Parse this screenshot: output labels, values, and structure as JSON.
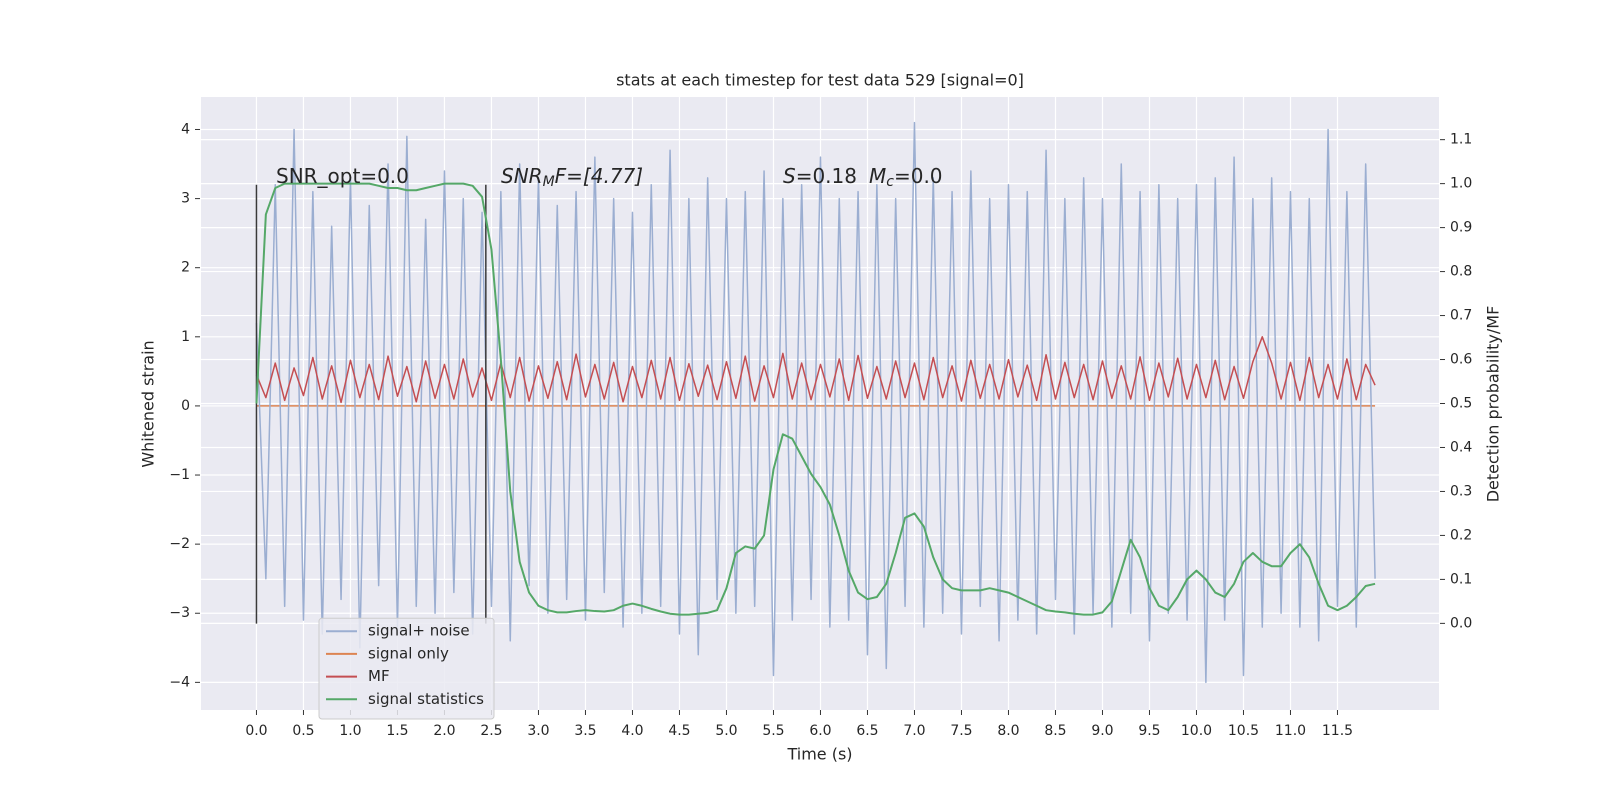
{
  "chart_data": {
    "type": "line",
    "title": "stats at each timestep for test data 529 [signal=0]",
    "xlabel": "Time (s)",
    "ylabel": "Whitened strain",
    "y2label": "Detection probability/MF",
    "annotations": [
      [
        "SNR_opt=0.0"
      ],
      [
        "SNR",
        "M",
        "F=[4.77]"
      ],
      [
        "S",
        "=0.18",
        "M",
        "c",
        "=0.0"
      ]
    ],
    "xlim": [
      -0.59,
      12.58
    ],
    "ylim": [
      -4.4,
      4.47
    ],
    "y2lim": [
      -0.197,
      1.197
    ],
    "xticks": [
      {
        "value": 0,
        "label": "0.0"
      },
      0.5,
      {
        "value": 1,
        "label": "1.0"
      },
      1.5,
      {
        "value": 2,
        "label": "2.0"
      },
      2.5,
      {
        "value": 3,
        "label": "3.0"
      },
      3.5,
      {
        "value": 4,
        "label": "4.0"
      },
      4.5,
      {
        "value": 5,
        "label": "5.0"
      },
      5.5,
      {
        "value": 6,
        "label": "6.0"
      },
      6.5,
      {
        "value": 7,
        "label": "7.0"
      },
      7.5,
      {
        "value": 8,
        "label": "8.0"
      },
      8.5,
      {
        "value": 9,
        "label": "9.0"
      },
      9.5,
      {
        "value": 10,
        "label": "10.0"
      },
      10.5,
      {
        "value": 11,
        "label": "11.0"
      },
      11.5
    ],
    "yticks": [
      {
        "value": -4,
        "label": "−4"
      },
      {
        "value": -3,
        "label": "−3"
      },
      {
        "value": -2,
        "label": "−2"
      },
      {
        "value": -1,
        "label": "−1"
      },
      0,
      1,
      2,
      3,
      4
    ],
    "y2ticks": [
      {
        "value": 0,
        "label": "0.0"
      },
      0.1,
      0.2,
      0.3,
      0.4,
      0.5,
      0.6,
      0.7,
      0.8,
      0.9,
      {
        "value": 1,
        "label": "1.0"
      },
      1.1
    ],
    "grid": true,
    "legend": "lower left",
    "vlines": {
      "x": [
        0,
        2.44
      ],
      "ymin": -3.15,
      "ymax": 3.2,
      "color": "#3a3a3a"
    },
    "x": [
      0.0,
      0.1,
      0.2,
      0.3,
      0.4,
      0.5,
      0.6,
      0.7,
      0.8,
      0.9,
      1.0,
      1.1,
      1.2,
      1.3,
      1.4,
      1.5,
      1.6,
      1.7,
      1.8,
      1.9,
      2.0,
      2.1,
      2.2,
      2.3,
      2.4,
      2.5,
      2.6,
      2.7,
      2.8,
      2.9,
      3.0,
      3.1,
      3.2,
      3.3,
      3.4,
      3.5,
      3.6,
      3.7,
      3.8,
      3.9,
      4.0,
      4.1,
      4.2,
      4.3,
      4.4,
      4.5,
      4.6,
      4.7,
      4.8,
      4.9,
      5.0,
      5.1,
      5.2,
      5.3,
      5.4,
      5.5,
      5.6,
      5.7,
      5.8,
      5.9,
      6.0,
      6.1,
      6.2,
      6.3,
      6.4,
      6.5,
      6.6,
      6.7,
      6.8,
      6.9,
      7.0,
      7.1,
      7.2,
      7.3,
      7.4,
      7.5,
      7.6,
      7.7,
      7.8,
      7.9,
      8.0,
      8.1,
      8.2,
      8.3,
      8.4,
      8.5,
      8.6,
      8.7,
      8.8,
      8.9,
      9.0,
      9.1,
      9.2,
      9.3,
      9.4,
      9.5,
      9.6,
      9.7,
      9.8,
      9.9,
      10.0,
      10.1,
      10.2,
      10.3,
      10.4,
      10.5,
      10.6,
      10.7,
      10.8,
      10.9,
      11.0,
      11.1,
      11.2,
      11.3,
      11.4,
      11.5,
      11.6,
      11.7,
      11.8,
      11.9
    ],
    "series": [
      {
        "name": "signal+ noise",
        "color": "#9baed1",
        "values": [
          1.2,
          -2.5,
          3.2,
          -2.9,
          4.0,
          -3.1,
          3.1,
          -3.3,
          2.6,
          -2.8,
          3.3,
          -3.5,
          2.9,
          -2.6,
          3.5,
          -3.2,
          3.9,
          -2.9,
          2.7,
          -3.0,
          3.4,
          -2.7,
          3.0,
          -3.3,
          2.8,
          -2.9,
          3.1,
          -3.4,
          3.5,
          -2.6,
          3.3,
          -3.0,
          2.9,
          -2.8,
          3.1,
          -3.1,
          3.6,
          -2.7,
          3.0,
          -3.2,
          2.8,
          -3.0,
          3.2,
          -2.9,
          3.7,
          -3.3,
          3.0,
          -3.6,
          3.3,
          -2.8,
          3.0,
          -3.0,
          3.1,
          -2.9,
          3.4,
          -3.9,
          3.0,
          -3.1,
          3.2,
          -2.8,
          3.6,
          -3.2,
          3.0,
          -3.1,
          3.1,
          -3.6,
          3.2,
          -3.8,
          3.0,
          -2.9,
          4.1,
          -3.2,
          3.3,
          -3.0,
          3.1,
          -3.3,
          3.4,
          -2.9,
          3.0,
          -3.4,
          3.2,
          -3.1,
          3.1,
          -3.3,
          3.7,
          -2.8,
          3.0,
          -3.3,
          3.3,
          -3.0,
          3.0,
          -3.2,
          3.5,
          -3.0,
          3.1,
          -3.4,
          3.2,
          -3.0,
          3.0,
          -3.1,
          3.2,
          -4.0,
          3.3,
          -3.1,
          3.6,
          -3.9,
          3.0,
          -3.2,
          3.3,
          -3.0,
          3.1,
          -3.2,
          3.0,
          -3.4,
          4.0,
          -2.9,
          3.1,
          -3.2,
          3.5,
          -2.5
        ]
      },
      {
        "name": "signal only",
        "color": "#dd8452",
        "values": [
          0,
          0,
          0,
          0,
          0,
          0,
          0,
          0,
          0,
          0,
          0,
          0,
          0,
          0,
          0,
          0,
          0,
          0,
          0,
          0,
          0,
          0,
          0,
          0,
          0,
          0,
          0,
          0,
          0,
          0,
          0,
          0,
          0,
          0,
          0,
          0,
          0,
          0,
          0,
          0,
          0,
          0,
          0,
          0,
          0,
          0,
          0,
          0,
          0,
          0,
          0,
          0,
          0,
          0,
          0,
          0,
          0,
          0,
          0,
          0,
          0,
          0,
          0,
          0,
          0,
          0,
          0,
          0,
          0,
          0,
          0,
          0,
          0,
          0,
          0,
          0,
          0,
          0,
          0,
          0,
          0,
          0,
          0,
          0,
          0,
          0,
          0,
          0,
          0,
          0,
          0,
          0,
          0,
          0,
          0,
          0,
          0,
          0,
          0,
          0,
          0,
          0,
          0,
          0,
          0,
          0,
          0,
          0,
          0,
          0,
          0,
          0,
          0,
          0,
          0,
          0,
          0,
          0,
          0,
          0
        ]
      },
      {
        "name": "MF",
        "color": "#c44e52",
        "values": [
          0.45,
          0.12,
          0.62,
          0.08,
          0.55,
          0.15,
          0.7,
          0.1,
          0.58,
          0.05,
          0.66,
          0.12,
          0.6,
          0.09,
          0.72,
          0.14,
          0.57,
          0.06,
          0.65,
          0.11,
          0.6,
          0.1,
          0.68,
          0.13,
          0.55,
          0.08,
          0.62,
          0.12,
          0.7,
          0.07,
          0.58,
          0.11,
          0.64,
          0.09,
          0.75,
          0.13,
          0.6,
          0.1,
          0.63,
          0.06,
          0.57,
          0.12,
          0.66,
          0.1,
          0.7,
          0.08,
          0.61,
          0.14,
          0.59,
          0.09,
          0.64,
          0.11,
          0.72,
          0.07,
          0.58,
          0.12,
          0.76,
          0.1,
          0.62,
          0.09,
          0.6,
          0.13,
          0.68,
          0.08,
          0.73,
          0.11,
          0.57,
          0.1,
          0.65,
          0.12,
          0.62,
          0.09,
          0.7,
          0.12,
          0.58,
          0.07,
          0.66,
          0.11,
          0.6,
          0.1,
          0.67,
          0.13,
          0.59,
          0.08,
          0.74,
          0.1,
          0.63,
          0.12,
          0.6,
          0.09,
          0.65,
          0.11,
          0.58,
          0.1,
          0.71,
          0.08,
          0.62,
          0.13,
          0.69,
          0.1,
          0.6,
          0.12,
          0.66,
          0.09,
          0.57,
          0.11,
          0.64,
          1.0,
          0.62,
          0.1,
          0.63,
          0.08,
          0.7,
          0.12,
          0.6,
          0.1,
          0.68,
          0.09,
          0.6,
          0.3
        ]
      },
      {
        "name": "signal statistics",
        "color": "#55a868",
        "axis": "y2",
        "values": [
          0.5,
          0.93,
          0.99,
          1.0,
          1.0,
          1.0,
          1.0,
          1.0,
          1.0,
          1.0,
          1.0,
          1.0,
          1.0,
          0.995,
          0.99,
          0.99,
          0.985,
          0.985,
          0.99,
          0.995,
          1.0,
          1.0,
          1.0,
          0.995,
          0.97,
          0.85,
          0.6,
          0.3,
          0.14,
          0.07,
          0.04,
          0.03,
          0.025,
          0.025,
          0.028,
          0.03,
          0.028,
          0.027,
          0.03,
          0.04,
          0.045,
          0.04,
          0.033,
          0.027,
          0.022,
          0.02,
          0.02,
          0.022,
          0.024,
          0.03,
          0.08,
          0.16,
          0.175,
          0.17,
          0.2,
          0.35,
          0.43,
          0.42,
          0.38,
          0.34,
          0.31,
          0.27,
          0.2,
          0.12,
          0.07,
          0.055,
          0.06,
          0.09,
          0.16,
          0.24,
          0.25,
          0.22,
          0.15,
          0.1,
          0.08,
          0.075,
          0.075,
          0.075,
          0.08,
          0.075,
          0.07,
          0.06,
          0.05,
          0.04,
          0.03,
          0.027,
          0.025,
          0.022,
          0.02,
          0.02,
          0.025,
          0.05,
          0.12,
          0.19,
          0.15,
          0.08,
          0.04,
          0.03,
          0.06,
          0.1,
          0.12,
          0.1,
          0.07,
          0.06,
          0.09,
          0.14,
          0.16,
          0.14,
          0.13,
          0.13,
          0.16,
          0.18,
          0.15,
          0.09,
          0.04,
          0.03,
          0.04,
          0.06,
          0.085,
          0.09
        ]
      }
    ]
  }
}
